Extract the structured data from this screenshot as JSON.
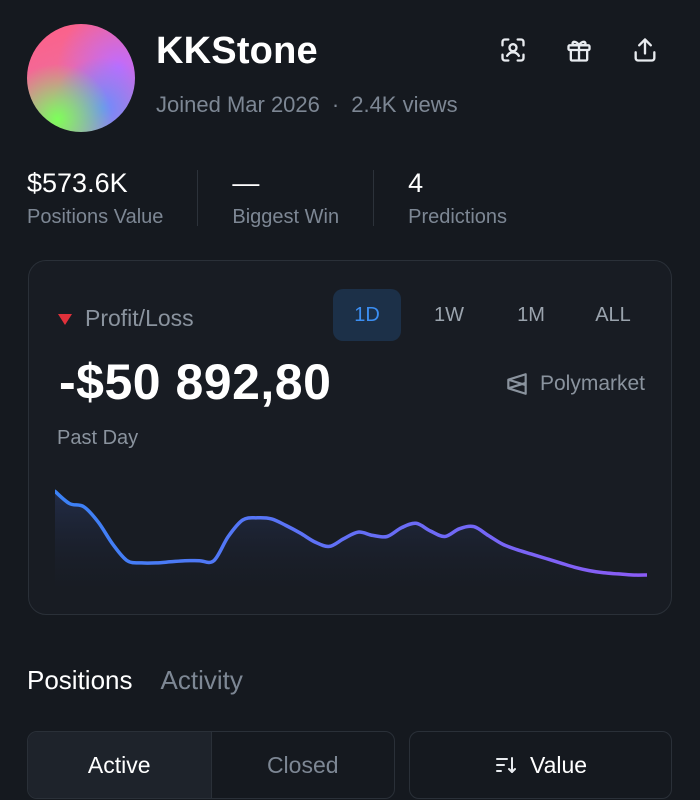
{
  "profile": {
    "username": "KKStone",
    "joined": "Joined Mar 2026",
    "separator": "·",
    "views": "2.4K views",
    "avatar_colors": [
      "#ff5f86",
      "#b884d8",
      "#7dff5a",
      "#6a8cff"
    ]
  },
  "header_icons": [
    "profile-scan-icon",
    "gift-icon",
    "share-icon"
  ],
  "stats": [
    {
      "value": "$573.6K",
      "label": "Positions Value"
    },
    {
      "value": "—",
      "label": "Biggest Win"
    },
    {
      "value": "4",
      "label": "Predictions"
    }
  ],
  "pnl": {
    "title": "Profit/Loss",
    "value": "-$50 892,80",
    "period": "Past Day",
    "brand": "Polymarket",
    "tabs": [
      "1D",
      "1W",
      "1M",
      "ALL"
    ],
    "active_tab": "1D",
    "indicator_color": "#e0313b",
    "accent_color": "#3b8ef2"
  },
  "chart_data": {
    "type": "area",
    "x": [
      0,
      1,
      2,
      3,
      4,
      5,
      6,
      7,
      8,
      9,
      10,
      11,
      12,
      13,
      14,
      15,
      16,
      17,
      18,
      19,
      20,
      21,
      22,
      23,
      24,
      25,
      26,
      27,
      28,
      29,
      30,
      31,
      32,
      33,
      34,
      35,
      36,
      37,
      38,
      39,
      40,
      41
    ],
    "values": [
      86,
      75,
      72,
      58,
      38,
      23,
      21,
      21,
      22,
      23,
      23,
      23,
      45,
      60,
      62,
      61,
      55,
      48,
      40,
      36,
      43,
      49,
      46,
      45,
      53,
      57,
      50,
      45,
      52,
      54,
      46,
      38,
      33,
      29,
      25,
      21,
      17,
      14,
      12,
      11,
      10,
      10
    ],
    "title": "",
    "xlabel": "",
    "ylabel": "",
    "ylim": [
      0,
      100
    ],
    "grid": false,
    "line_gradient": [
      "#3b82f6",
      "#8b5cf6"
    ]
  },
  "section_tabs": {
    "positions": "Positions",
    "activity": "Activity",
    "active": "Positions"
  },
  "filter": {
    "active": "Active",
    "closed": "Closed",
    "selected": "Active"
  },
  "sort": {
    "label": "Value"
  }
}
